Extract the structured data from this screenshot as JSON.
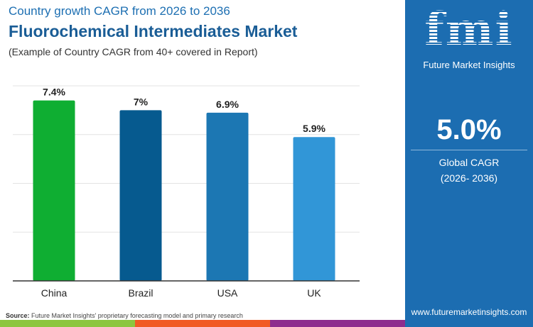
{
  "header": {
    "subtitle": "Country growth CAGR from 2026 to 2036",
    "title": "Fluorochemical Intermediates Market",
    "note": "(Example of Country CAGR from 40+ covered in Report)"
  },
  "panel": {
    "logo_text": "fmi",
    "logo_sub": "Future Market Insights",
    "global_value": "5.0%",
    "global_label": "Global CAGR",
    "global_period": "(2026- 2036)",
    "url": "www.futuremarketinsights.com",
    "color": "#1c6db1"
  },
  "footer": {
    "source_label": "Source:",
    "source_text": "Future Market Insights' proprietary forecasting model and primary research",
    "stripe_colors": [
      "#8cc63f",
      "#f15a24",
      "#8e2d8e"
    ]
  },
  "chart_data": {
    "type": "bar",
    "categories": [
      "China",
      "Brazil",
      "USA",
      "UK"
    ],
    "values": [
      7.4,
      7.0,
      6.9,
      5.9
    ],
    "labels": [
      "7.4%",
      "7%",
      "6.9%",
      "5.9%"
    ],
    "colors": [
      "#0fae32",
      "#065a8f",
      "#1c77b3",
      "#3196d7"
    ],
    "ylim": [
      0,
      8
    ],
    "grid": true,
    "title": "",
    "xlabel": "",
    "ylabel": ""
  }
}
